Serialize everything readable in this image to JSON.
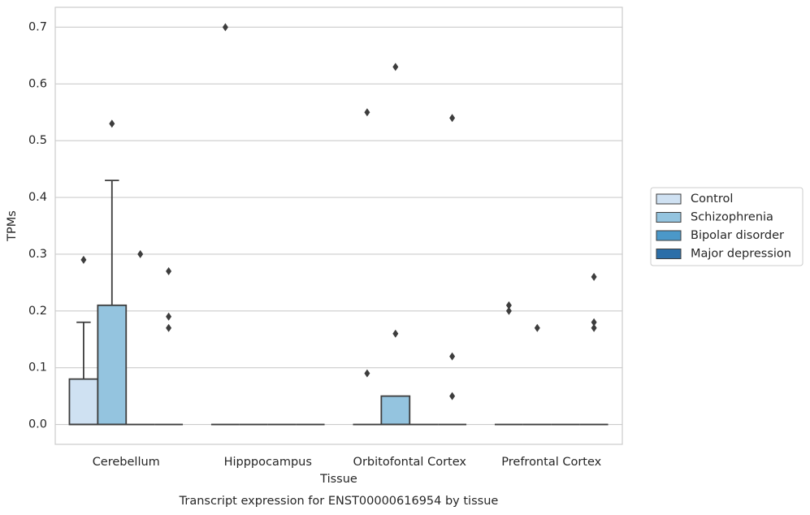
{
  "chart_data": {
    "type": "box",
    "title": "Transcript expression for ENST00000616954 by tissue",
    "x_label": "Tissue",
    "y_label": "TPMs",
    "categories": [
      "Cerebellum",
      "Hipppocampus",
      "Orbitofontal Cortex",
      "Prefrontal Cortex"
    ],
    "ylim": [
      -0.035,
      0.735
    ],
    "yticks": [
      {
        "value": 0,
        "label": "0.0"
      },
      0.1,
      0.2,
      0.3,
      0.4,
      0.5,
      0.6,
      0.7
    ],
    "grid": true,
    "legend": "right",
    "series": [
      {
        "name": "Control",
        "color": "#cfe1f2",
        "boxes": [
          {
            "q1": 0,
            "median": 0,
            "q3": 0.08,
            "whislo": 0,
            "whishi": 0.18,
            "fliers": [
              0.29
            ]
          },
          {
            "q1": 0,
            "median": 0,
            "q3": 0,
            "whislo": 0,
            "whishi": 0,
            "fliers": [
              0.7
            ]
          },
          {
            "q1": 0,
            "median": 0,
            "q3": 0,
            "whislo": 0,
            "whishi": 0,
            "fliers": [
              0.09,
              0.55
            ]
          },
          {
            "q1": 0,
            "median": 0,
            "q3": 0,
            "whislo": 0,
            "whishi": 0,
            "fliers": [
              0.21,
              0.2
            ]
          }
        ]
      },
      {
        "name": "Schizophrenia",
        "color": "#94c4df",
        "boxes": [
          {
            "q1": 0,
            "median": 0,
            "q3": 0.21,
            "whislo": 0,
            "whishi": 0.43,
            "fliers": [
              0.53
            ]
          },
          {
            "q1": 0,
            "median": 0,
            "q3": 0,
            "whislo": 0,
            "whishi": 0,
            "fliers": []
          },
          {
            "q1": 0,
            "median": 0,
            "q3": 0.05,
            "whislo": 0,
            "whishi": 0.05,
            "fliers": [
              0.63,
              0.16
            ]
          },
          {
            "q1": 0,
            "median": 0,
            "q3": 0,
            "whislo": 0,
            "whishi": 0,
            "fliers": [
              0.17
            ]
          }
        ]
      },
      {
        "name": "Bipolar disorder",
        "color": "#4b98c9",
        "boxes": [
          {
            "q1": 0,
            "median": 0,
            "q3": 0,
            "whislo": 0,
            "whishi": 0,
            "fliers": [
              0.3
            ]
          },
          {
            "q1": 0,
            "median": 0,
            "q3": 0,
            "whislo": 0,
            "whishi": 0,
            "fliers": []
          },
          {
            "q1": 0,
            "median": 0,
            "q3": 0,
            "whislo": 0,
            "whishi": 0,
            "fliers": []
          },
          {
            "q1": 0,
            "median": 0,
            "q3": 0,
            "whislo": 0,
            "whishi": 0,
            "fliers": []
          }
        ]
      },
      {
        "name": "Major depression",
        "color": "#2b6ea8",
        "boxes": [
          {
            "q1": 0,
            "median": 0,
            "q3": 0,
            "whislo": 0,
            "whishi": 0,
            "fliers": [
              0.27,
              0.19,
              0.17
            ]
          },
          {
            "q1": 0,
            "median": 0,
            "q3": 0,
            "whislo": 0,
            "whishi": 0,
            "fliers": []
          },
          {
            "q1": 0,
            "median": 0,
            "q3": 0,
            "whislo": 0,
            "whishi": 0,
            "fliers": [
              0.54,
              0.12,
              0.05
            ]
          },
          {
            "q1": 0,
            "median": 0,
            "q3": 0,
            "whislo": 0,
            "whishi": 0,
            "fliers": [
              0.26,
              0.18,
              0.17
            ]
          }
        ]
      }
    ]
  }
}
